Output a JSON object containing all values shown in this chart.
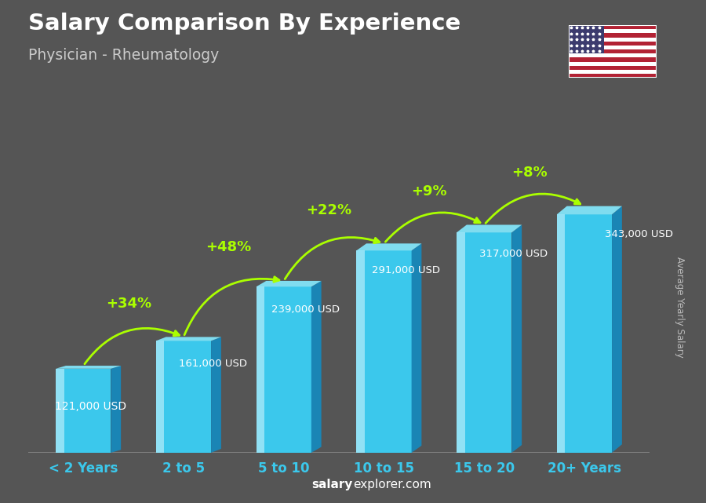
{
  "title": "Salary Comparison By Experience",
  "subtitle": "Physician - Rheumatology",
  "categories": [
    "< 2 Years",
    "2 to 5",
    "5 to 10",
    "10 to 15",
    "15 to 20",
    "20+ Years"
  ],
  "values": [
    121000,
    161000,
    239000,
    291000,
    317000,
    343000
  ],
  "labels": [
    "121,000 USD",
    "161,000 USD",
    "239,000 USD",
    "291,000 USD",
    "317,000 USD",
    "343,000 USD"
  ],
  "pct_changes": [
    "+34%",
    "+48%",
    "+22%",
    "+9%",
    "+8%"
  ],
  "face_color": "#3BC8EC",
  "dark_color": "#1A85B5",
  "top_color": "#80DCEF",
  "highlight_color": "#A8E8F8",
  "bg_color": "#555555",
  "title_color": "#FFFFFF",
  "subtitle_color": "#DDDDDD",
  "label_color": "#FFFFFF",
  "pct_color": "#AAFF00",
  "xticklabel_color": "#3BC8EC",
  "footer_bold": "salary",
  "footer_rest": "explorer.com",
  "ylabel_text": "Average Yearly Salary",
  "ylabel_color": "#BBBBBB",
  "ylim_max": 420000
}
